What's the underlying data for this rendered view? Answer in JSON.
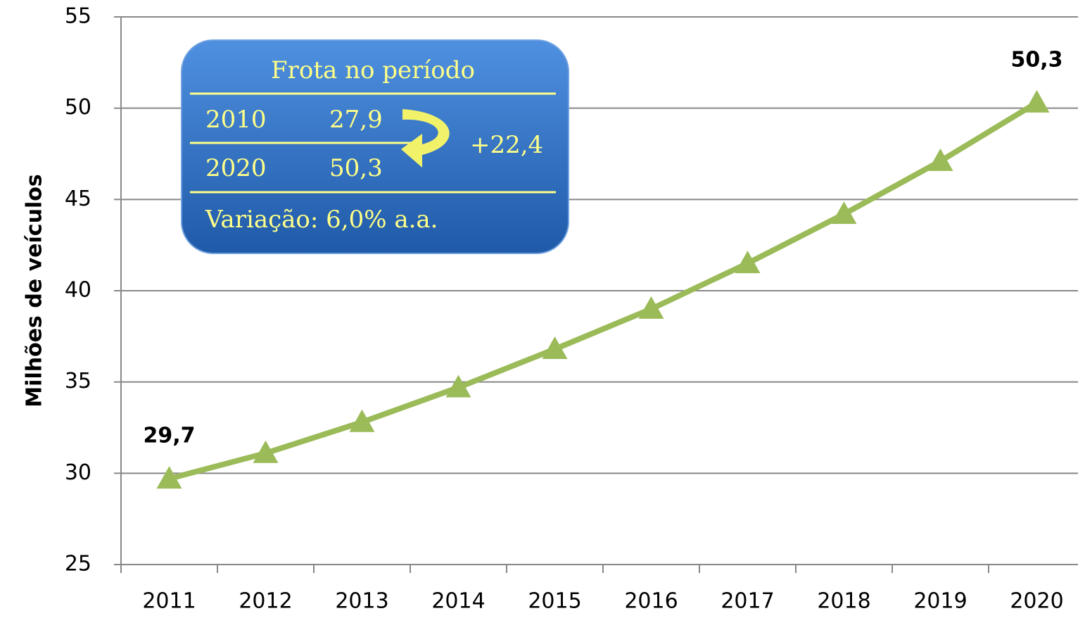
{
  "chart_data": {
    "type": "line",
    "y_label": "Milhões de veículos",
    "categories": [
      "2011",
      "2012",
      "2013",
      "2014",
      "2015",
      "2016",
      "2017",
      "2018",
      "2019",
      "2020"
    ],
    "series": [
      {
        "name": "Frota",
        "color": "#9bbb59",
        "values": [
          29.7,
          31.1,
          32.8,
          34.7,
          36.8,
          39.0,
          41.5,
          44.2,
          47.1,
          50.3
        ],
        "value_labels": [
          "29,7",
          null,
          null,
          null,
          null,
          null,
          null,
          null,
          null,
          "50,3"
        ]
      }
    ],
    "ylim": [
      25,
      55
    ],
    "yticks": [
      25,
      30,
      35,
      40,
      45,
      50,
      55
    ],
    "grid": true,
    "inset": {
      "title": "Frota no período",
      "rows": [
        [
          "2010",
          "27,9"
        ],
        [
          "2020",
          "50,3"
        ]
      ],
      "change": "+22,4",
      "note": "Variação: 6,0% a.a."
    }
  }
}
